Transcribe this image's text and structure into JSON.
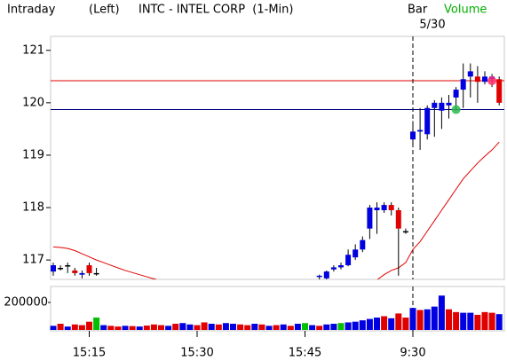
{
  "header": {
    "mode": "Intraday",
    "side": "(Left)",
    "bar": "Bar",
    "date": "5/30",
    "volume": "Volume",
    "volume_color": "#00b000"
  },
  "chart_data": [
    {
      "type": "candlestick",
      "title": "INTC - INTEL CORP  (1-Min)",
      "ylim": [
        116.63,
        121.25
      ],
      "yticks": [
        117,
        118,
        119,
        120,
        121
      ],
      "up_color": "#0000e0",
      "down_color": "#e00000",
      "flat_color": "#000000",
      "open": [
        116.78,
        116.85,
        116.9,
        116.8,
        116.72,
        116.9,
        116.75,
        null,
        null,
        null,
        null,
        null,
        null,
        null,
        null,
        null,
        null,
        null,
        null,
        null,
        null,
        null,
        null,
        null,
        null,
        null,
        null,
        null,
        null,
        null,
        null,
        null,
        null,
        null,
        null,
        null,
        null,
        116.68,
        116.65,
        116.82,
        116.86,
        116.9,
        117.05,
        117.2,
        117.6,
        117.95,
        117.95,
        118.05,
        117.95,
        117.55,
        119.3,
        119.45,
        119.4,
        119.9,
        119.85,
        119.95,
        120.1,
        120.25,
        120.5,
        120.5,
        120.4,
        120.45,
        120.45
      ],
      "high": [
        116.95,
        116.9,
        116.95,
        116.85,
        116.8,
        116.95,
        116.85,
        null,
        null,
        null,
        null,
        null,
        null,
        null,
        null,
        null,
        null,
        null,
        null,
        null,
        null,
        null,
        null,
        null,
        null,
        null,
        null,
        null,
        null,
        null,
        null,
        null,
        null,
        null,
        null,
        null,
        null,
        116.72,
        116.8,
        116.9,
        116.95,
        117.2,
        117.3,
        117.45,
        118.05,
        118.1,
        118.1,
        118.1,
        118.0,
        117.6,
        119.65,
        119.9,
        119.95,
        120.05,
        120.1,
        120.15,
        120.3,
        120.75,
        120.75,
        120.7,
        120.6,
        120.55,
        120.5
      ],
      "low": [
        116.7,
        116.8,
        116.75,
        116.7,
        116.65,
        116.7,
        116.7,
        null,
        null,
        null,
        null,
        null,
        null,
        null,
        null,
        null,
        null,
        null,
        null,
        null,
        null,
        null,
        null,
        null,
        null,
        null,
        null,
        null,
        null,
        null,
        null,
        null,
        null,
        null,
        null,
        null,
        null,
        116.6,
        116.6,
        116.78,
        116.82,
        116.88,
        117.0,
        117.15,
        117.4,
        117.5,
        117.9,
        117.85,
        116.7,
        117.5,
        119.15,
        119.1,
        119.3,
        119.35,
        119.5,
        119.7,
        119.85,
        119.9,
        120.1,
        120.0,
        120.35,
        120.3,
        119.95
      ],
      "close": [
        116.9,
        116.85,
        116.9,
        116.75,
        116.75,
        116.75,
        116.75,
        null,
        null,
        null,
        null,
        null,
        null,
        null,
        null,
        null,
        null,
        null,
        null,
        null,
        null,
        null,
        null,
        null,
        null,
        null,
        null,
        null,
        null,
        null,
        null,
        null,
        null,
        null,
        null,
        null,
        null,
        116.7,
        116.78,
        116.86,
        116.9,
        117.1,
        117.2,
        117.38,
        118.0,
        118.0,
        118.05,
        117.95,
        117.6,
        117.55,
        119.45,
        119.48,
        119.9,
        120.0,
        120.0,
        120.0,
        120.25,
        120.45,
        120.6,
        120.4,
        120.5,
        120.5,
        120.0
      ],
      "ma": [
        117.25,
        117.24,
        117.22,
        117.18,
        117.12,
        117.06,
        117.0,
        116.95,
        116.9,
        116.85,
        116.8,
        116.76,
        116.72,
        116.68,
        116.64,
        116.6,
        null,
        null,
        null,
        null,
        null,
        null,
        null,
        null,
        null,
        null,
        null,
        null,
        null,
        null,
        null,
        null,
        null,
        null,
        null,
        null,
        null,
        null,
        null,
        null,
        null,
        null,
        null,
        null,
        null,
        116.62,
        116.72,
        116.8,
        116.85,
        116.95,
        117.2,
        117.35,
        117.55,
        117.75,
        117.95,
        118.15,
        118.35,
        118.55,
        118.7,
        118.85,
        118.98,
        119.1,
        119.25
      ],
      "ma_color": "#e00000",
      "hlines": [
        {
          "value": 120.42,
          "color": "#e00000"
        },
        {
          "value": 119.87,
          "color": "#000080"
        }
      ],
      "markers": [
        {
          "index": 56,
          "value": 119.87,
          "color": "#2db84d"
        },
        {
          "index": 61,
          "value": 120.42,
          "color": "#ff3070"
        }
      ],
      "session_break": 50
    },
    {
      "type": "bar",
      "ylim": [
        0,
        300000
      ],
      "yticks": [
        200000
      ],
      "categories": [
        null,
        null,
        null,
        null,
        null,
        "15:15",
        null,
        null,
        null,
        null,
        null,
        null,
        null,
        null,
        null,
        null,
        null,
        null,
        null,
        null,
        "15:30",
        null,
        null,
        null,
        null,
        null,
        null,
        null,
        null,
        null,
        null,
        null,
        null,
        null,
        null,
        "15:45",
        null,
        null,
        null,
        null,
        null,
        null,
        null,
        null,
        null,
        null,
        null,
        null,
        null,
        null,
        "9:30",
        null,
        null,
        null,
        null,
        null,
        null,
        null,
        null,
        null,
        null,
        null,
        null
      ],
      "values": [
        30000,
        45000,
        25000,
        40000,
        35000,
        60000,
        90000,
        35000,
        30000,
        25000,
        30000,
        28000,
        25000,
        32000,
        40000,
        35000,
        30000,
        45000,
        50000,
        40000,
        35000,
        55000,
        45000,
        40000,
        50000,
        45000,
        40000,
        35000,
        45000,
        40000,
        30000,
        35000,
        40000,
        30000,
        45000,
        50000,
        35000,
        30000,
        40000,
        45000,
        50000,
        55000,
        60000,
        70000,
        80000,
        90000,
        100000,
        85000,
        120000,
        90000,
        160000,
        145000,
        150000,
        170000,
        250000,
        150000,
        130000,
        125000,
        125000,
        110000,
        130000,
        125000,
        115000
      ],
      "colors": [
        "#0000e0",
        "#e00000",
        "#0000e0",
        "#e00000",
        "#e00000",
        "#e00000",
        "#00c000",
        "#0000e0",
        "#e00000",
        "#e00000",
        "#0000e0",
        "#e00000",
        "#0000e0",
        "#e00000",
        "#e00000",
        "#e00000",
        "#0000e0",
        "#e00000",
        "#0000e0",
        "#0000e0",
        "#e00000",
        "#e00000",
        "#0000e0",
        "#e00000",
        "#0000e0",
        "#0000e0",
        "#e00000",
        "#e00000",
        "#0000e0",
        "#e00000",
        "#0000e0",
        "#e00000",
        "#0000e0",
        "#e00000",
        "#0000e0",
        "#00c000",
        "#0000e0",
        "#e00000",
        "#0000e0",
        "#0000e0",
        "#00c000",
        "#0000e0",
        "#0000e0",
        "#0000e0",
        "#0000e0",
        "#0000e0",
        "#e00000",
        "#0000e0",
        "#e00000",
        "#e00000",
        "#0000e0",
        "#e00000",
        "#0000e0",
        "#0000e0",
        "#0000e0",
        "#e00000",
        "#e00000",
        "#0000e0",
        "#0000e0",
        "#e00000",
        "#e00000",
        "#e00000",
        "#0000e0"
      ]
    }
  ]
}
